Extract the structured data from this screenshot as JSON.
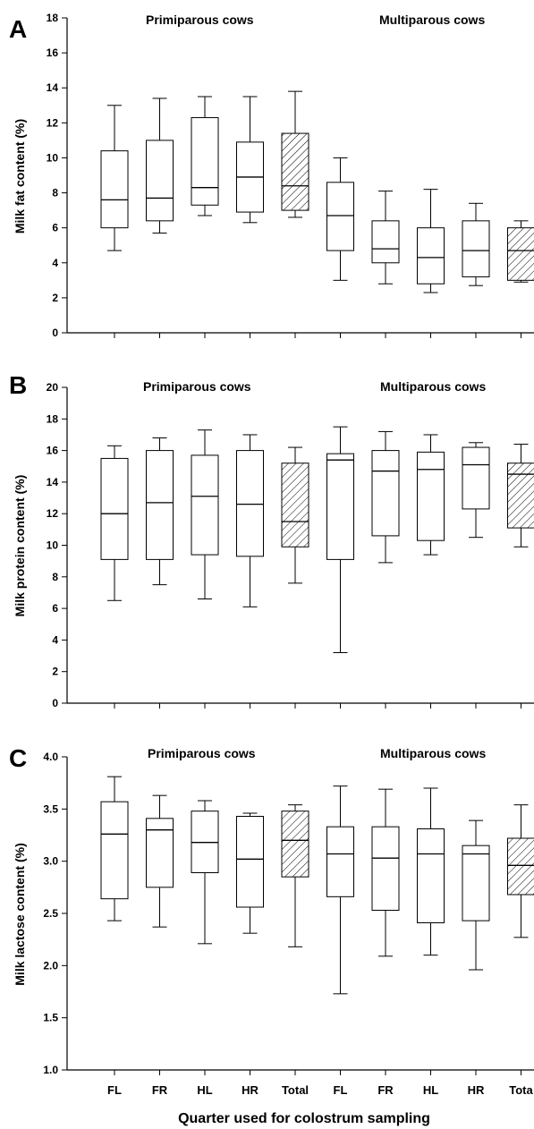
{
  "chart_data": [
    {
      "type": "box",
      "panel": "A",
      "ylabel": "Milk fat content (%)",
      "ylim": [
        0,
        18
      ],
      "yticks": [
        0,
        2,
        4,
        6,
        8,
        10,
        12,
        14,
        16,
        18
      ],
      "groups": [
        "Primiparous cows",
        "Multiparous cows"
      ],
      "categories": [
        "FL",
        "FR",
        "HL",
        "HR",
        "Total",
        "FL",
        "FR",
        "HL",
        "HR",
        "Total"
      ],
      "hatched": [
        false,
        false,
        false,
        false,
        true,
        false,
        false,
        false,
        false,
        true
      ],
      "boxes": [
        {
          "min": 4.7,
          "q1": 6.0,
          "median": 7.6,
          "q3": 10.4,
          "max": 13.0
        },
        {
          "min": 5.7,
          "q1": 6.4,
          "median": 7.7,
          "q3": 11.0,
          "max": 13.4
        },
        {
          "min": 6.7,
          "q1": 7.3,
          "median": 8.3,
          "q3": 12.3,
          "max": 13.5
        },
        {
          "min": 6.3,
          "q1": 6.9,
          "median": 8.9,
          "q3": 10.9,
          "max": 13.5
        },
        {
          "min": 6.6,
          "q1": 7.0,
          "median": 8.4,
          "q3": 11.4,
          "max": 13.8
        },
        {
          "min": 3.0,
          "q1": 4.7,
          "median": 6.7,
          "q3": 8.6,
          "max": 10.0
        },
        {
          "min": 2.8,
          "q1": 4.0,
          "median": 4.8,
          "q3": 6.4,
          "max": 8.1
        },
        {
          "min": 2.3,
          "q1": 2.8,
          "median": 4.3,
          "q3": 6.0,
          "max": 8.2
        },
        {
          "min": 2.7,
          "q1": 3.2,
          "median": 4.7,
          "q3": 6.4,
          "max": 7.4
        },
        {
          "min": 2.9,
          "q1": 3.0,
          "median": 4.7,
          "q3": 6.0,
          "max": 6.4
        }
      ]
    },
    {
      "type": "box",
      "panel": "B",
      "ylabel": "Milk protein content (%)",
      "ylim": [
        0,
        20
      ],
      "yticks": [
        0,
        2,
        4,
        6,
        8,
        10,
        12,
        14,
        16,
        18,
        20
      ],
      "groups": [
        "Primiparous cows",
        "Multiparous cows"
      ],
      "categories": [
        "FL",
        "FR",
        "HL",
        "HR",
        "Total",
        "FL",
        "FR",
        "HL",
        "HR",
        "Total"
      ],
      "hatched": [
        false,
        false,
        false,
        false,
        true,
        false,
        false,
        false,
        false,
        true
      ],
      "boxes": [
        {
          "min": 6.5,
          "q1": 9.1,
          "median": 12.0,
          "q3": 15.5,
          "max": 16.3
        },
        {
          "min": 7.5,
          "q1": 9.1,
          "median": 12.7,
          "q3": 16.0,
          "max": 16.8
        },
        {
          "min": 6.6,
          "q1": 9.4,
          "median": 13.1,
          "q3": 15.7,
          "max": 17.3
        },
        {
          "min": 6.1,
          "q1": 9.3,
          "median": 12.6,
          "q3": 16.0,
          "max": 17.0
        },
        {
          "min": 7.6,
          "q1": 9.9,
          "median": 11.5,
          "q3": 15.2,
          "max": 16.2
        },
        {
          "min": 3.2,
          "q1": 9.1,
          "median": 15.4,
          "q3": 15.8,
          "max": 17.5
        },
        {
          "min": 8.9,
          "q1": 10.6,
          "median": 14.7,
          "q3": 16.0,
          "max": 17.2
        },
        {
          "min": 9.4,
          "q1": 10.3,
          "median": 14.8,
          "q3": 15.9,
          "max": 17.0
        },
        {
          "min": 10.5,
          "q1": 12.3,
          "median": 15.1,
          "q3": 16.2,
          "max": 16.5
        },
        {
          "min": 9.9,
          "q1": 11.1,
          "median": 14.5,
          "q3": 15.2,
          "max": 16.4
        }
      ]
    },
    {
      "type": "box",
      "panel": "C",
      "ylabel": "Milk lactose content (%)",
      "ylim": [
        1.0,
        4.0
      ],
      "yticks": [
        "1.0",
        "1.5",
        "2.0",
        "2.5",
        "3.0",
        "3.5",
        "4.0"
      ],
      "groups": [
        "Primiparous cows",
        "Multiparous cows"
      ],
      "categories": [
        "FL",
        "FR",
        "HL",
        "HR",
        "Total",
        "FL",
        "FR",
        "HL",
        "HR",
        "Tota"
      ],
      "hatched": [
        false,
        false,
        false,
        false,
        true,
        false,
        false,
        false,
        false,
        true
      ],
      "boxes": [
        {
          "min": 2.43,
          "q1": 2.64,
          "median": 3.26,
          "q3": 3.57,
          "max": 3.81
        },
        {
          "min": 2.37,
          "q1": 2.75,
          "median": 3.3,
          "q3": 3.41,
          "max": 3.63
        },
        {
          "min": 2.21,
          "q1": 2.89,
          "median": 3.18,
          "q3": 3.48,
          "max": 3.58
        },
        {
          "min": 2.31,
          "q1": 2.56,
          "median": 3.02,
          "q3": 3.43,
          "max": 3.46
        },
        {
          "min": 2.18,
          "q1": 2.85,
          "median": 3.2,
          "q3": 3.48,
          "max": 3.54
        },
        {
          "min": 1.73,
          "q1": 2.66,
          "median": 3.07,
          "q3": 3.33,
          "max": 3.72
        },
        {
          "min": 2.09,
          "q1": 2.53,
          "median": 3.03,
          "q3": 3.33,
          "max": 3.69
        },
        {
          "min": 2.1,
          "q1": 2.41,
          "median": 3.07,
          "q3": 3.31,
          "max": 3.7
        },
        {
          "min": 1.96,
          "q1": 2.43,
          "median": 3.07,
          "q3": 3.15,
          "max": 3.39
        },
        {
          "min": 2.27,
          "q1": 2.68,
          "median": 2.96,
          "q3": 3.22,
          "max": 3.54
        }
      ]
    }
  ],
  "xlabel": "Quarter used for colostrum sampling"
}
